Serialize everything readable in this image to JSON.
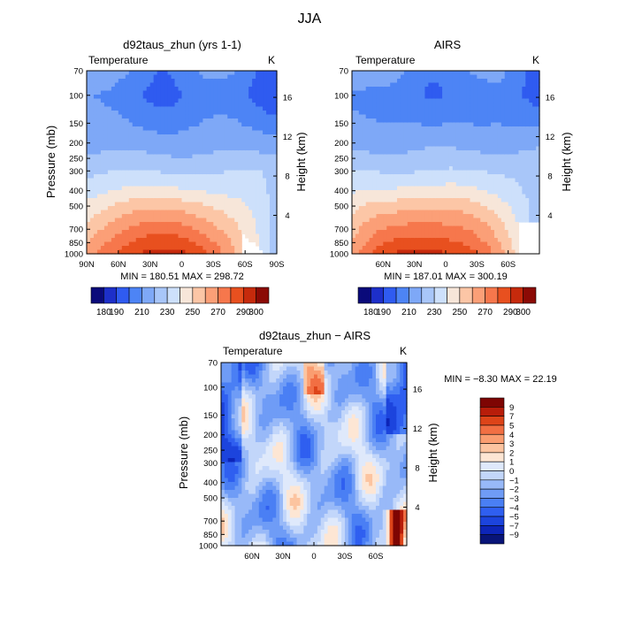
{
  "page": {
    "title": "JJA"
  },
  "panels": [
    {
      "id": "model",
      "title": "d92taus_zhun (yrs 1-1)",
      "field_label": "Temperature",
      "unit_label": "K",
      "y_axis_label": "Pressure (mb)",
      "y2_axis_label": "Height (km)",
      "stats": "MIN = 180.51   MAX = 298.72",
      "pressure_ticks": [
        "70",
        "100",
        "150",
        "200",
        "250",
        "300",
        "400",
        "500",
        "700",
        "850",
        "1000"
      ],
      "height_ticks": [
        "4",
        "8",
        "12",
        "16"
      ],
      "lat_ticks": [
        "90N",
        "60N",
        "30N",
        "0",
        "30S",
        "60S",
        "90S"
      ],
      "colorbar_labels": [
        "180",
        "190",
        "210",
        "230",
        "250",
        "270",
        "290",
        "300"
      ]
    },
    {
      "id": "airs",
      "title": "AIRS",
      "field_label": "Temperature",
      "unit_label": "K",
      "y_axis_label": "",
      "y2_axis_label": "Height (km)",
      "stats": "MIN = 187.01   MAX = 300.19",
      "pressure_ticks": [
        "70",
        "100",
        "150",
        "200",
        "250",
        "300",
        "400",
        "500",
        "700",
        "850",
        "1000"
      ],
      "height_ticks": [
        "4",
        "8",
        "12",
        "16"
      ],
      "lat_ticks": [
        "60N",
        "30N",
        "0",
        "30S",
        "60S"
      ],
      "colorbar_labels": [
        "180",
        "190",
        "210",
        "230",
        "250",
        "270",
        "290",
        "300"
      ]
    },
    {
      "id": "diff",
      "title": "d92taus_zhun − AIRS",
      "field_label": "Temperature",
      "unit_label": "K",
      "y_axis_label": "Pressure (mb)",
      "y2_axis_label": "Height (km)",
      "stats": "MIN =   −8.30   MAX =   22.19",
      "pressure_ticks": [
        "70",
        "100",
        "150",
        "200",
        "250",
        "300",
        "400",
        "500",
        "700",
        "850",
        "1000"
      ],
      "height_ticks": [
        "4",
        "8",
        "12",
        "16"
      ],
      "lat_ticks": [
        "60N",
        "30N",
        "0",
        "30S",
        "60S"
      ],
      "colorbar_labels": [
        "9",
        "7",
        "5",
        "4",
        "3",
        "2",
        "1",
        "0",
        "−1",
        "−2",
        "−3",
        "−4",
        "−5",
        "−7",
        "−9"
      ]
    }
  ],
  "chart_data": [
    {
      "type": "heatmap",
      "title": "d92taus_zhun (yrs 1-1)",
      "subtitle": "Temperature",
      "unit": "K",
      "ylabel": "Pressure (mb)",
      "y2label": "Height (km)",
      "x_range": [
        90,
        -90
      ],
      "y_range": [
        1000,
        70
      ],
      "y_scale": "log",
      "min": 180.51,
      "max": 298.72,
      "levels": [
        180,
        190,
        200,
        210,
        220,
        230,
        240,
        250,
        260,
        270,
        280,
        290,
        300
      ],
      "colors": [
        "#0a0a7a",
        "#1d2fc9",
        "#2f5bf0",
        "#4d84f5",
        "#7ea8f7",
        "#a8c6f9",
        "#cde0fb",
        "#f7e6d9",
        "#fcc6a6",
        "#fb9f77",
        "#f6774c",
        "#e8501f",
        "#c62a0c",
        "#8b0a05"
      ],
      "profile": [
        [
          1000,
          293
        ],
        [
          850,
          285
        ],
        [
          700,
          275
        ],
        [
          500,
          257
        ],
        [
          400,
          243
        ],
        [
          300,
          229
        ],
        [
          250,
          222
        ],
        [
          200,
          216
        ],
        [
          150,
          210
        ],
        [
          100,
          205
        ],
        [
          70,
          212
        ]
      ]
    },
    {
      "type": "heatmap",
      "title": "AIRS",
      "subtitle": "Temperature",
      "unit": "K",
      "ylabel": "",
      "y2label": "Height (km)",
      "x_range": [
        90,
        -90
      ],
      "y_range": [
        1000,
        70
      ],
      "y_scale": "log",
      "min": 187.01,
      "max": 300.19,
      "levels": [
        180,
        190,
        200,
        210,
        220,
        230,
        240,
        250,
        260,
        270,
        280,
        290,
        300
      ],
      "colors": [
        "#0a0a7a",
        "#1d2fc9",
        "#2f5bf0",
        "#4d84f5",
        "#7ea8f7",
        "#a8c6f9",
        "#cde0fb",
        "#f7e6d9",
        "#fcc6a6",
        "#fb9f77",
        "#f6774c",
        "#e8501f",
        "#c62a0c",
        "#8b0a05"
      ],
      "profile": [
        [
          1000,
          295
        ],
        [
          850,
          286
        ],
        [
          700,
          276
        ],
        [
          500,
          258
        ],
        [
          400,
          244
        ],
        [
          300,
          230
        ],
        [
          250,
          223
        ],
        [
          200,
          217
        ],
        [
          150,
          211
        ],
        [
          100,
          206
        ],
        [
          70,
          213
        ]
      ]
    },
    {
      "type": "heatmap",
      "title": "d92taus_zhun − AIRS",
      "subtitle": "Temperature",
      "unit": "K",
      "ylabel": "Pressure (mb)",
      "y2label": "Height (km)",
      "x_range": [
        90,
        -90
      ],
      "y_range": [
        1000,
        70
      ],
      "y_scale": "log",
      "min": -8.3,
      "max": 22.19,
      "levels": [
        -9,
        -7,
        -5,
        -4,
        -3,
        -2,
        -1,
        0,
        1,
        2,
        3,
        4,
        5,
        7,
        9
      ],
      "colors": [
        "#081478",
        "#0d25b8",
        "#1c44dd",
        "#2f5ff0",
        "#4a7ff4",
        "#6f9cf6",
        "#98b9f8",
        "#c2d6fa",
        "#dfe9fb",
        "#fde6d4",
        "#fcc4a0",
        "#fa9d70",
        "#f26f43",
        "#dd4419",
        "#b81d0a",
        "#7e0503"
      ]
    }
  ]
}
